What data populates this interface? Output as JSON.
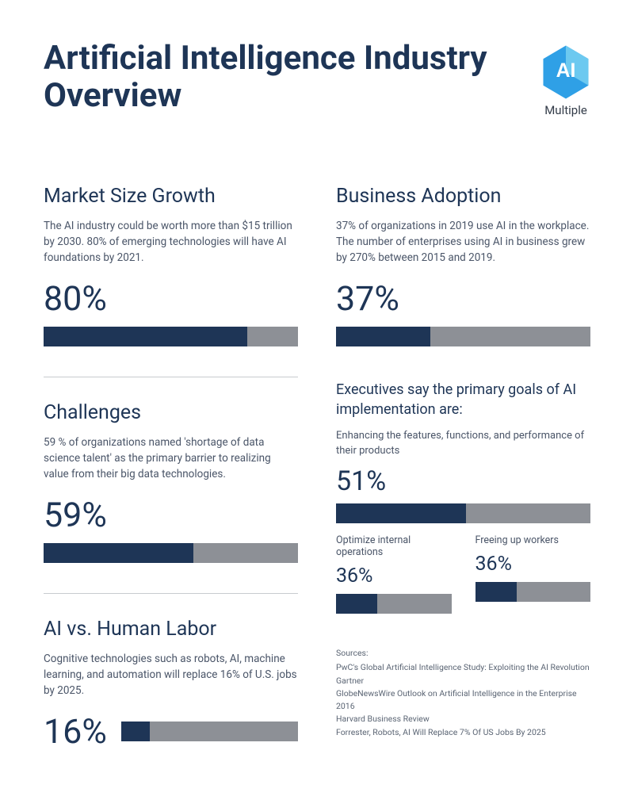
{
  "title": "Artificial Intelligence Industry Overview",
  "logo": {
    "label": "AI",
    "sublabel": "Multiple",
    "fill1": "#2fa0e6",
    "fill2": "#6cc9f0"
  },
  "colors": {
    "bar_fill": "#1e3556",
    "bar_bg": "#8d9096",
    "heading": "#1e3556",
    "body": "#4a5568"
  },
  "sections": {
    "market": {
      "title": "Market Size Growth",
      "desc": "The AI industry could be worth more than $15 trillion by 2030. 80% of emerging technologies will have AI foundations by 2021.",
      "pct_label": "80%",
      "pct": 80
    },
    "adoption": {
      "title": "Business Adoption",
      "desc": "37% of organizations in 2019 use AI in the workplace. The number of enterprises using AI in business grew by 270% between 2015 and 2019.",
      "pct_label": "37%",
      "pct": 37
    },
    "challenges": {
      "title": "Challenges",
      "desc": "59 % of organizations named 'shortage of data science talent' as the primary barrier to realizing value from their big data technologies.",
      "pct_label": "59%",
      "pct": 59
    },
    "labor": {
      "title": "AI vs. Human Labor",
      "desc": "Cognitive technologies such as robots, AI, machine learning, and automation will replace 16% of U.S. jobs by 2025.",
      "pct_label": "16%",
      "pct": 16
    },
    "goals": {
      "title": "Executives say the primary goals of AI implementation are:",
      "primary": {
        "desc": "Enhancing the features, functions, and performance of their products",
        "pct_label": "51%",
        "pct": 51
      },
      "sub": [
        {
          "label": "Optimize internal operations",
          "pct_label": "36%",
          "pct": 36
        },
        {
          "label": "Freeing up workers",
          "pct_label": "36%",
          "pct": 36
        }
      ]
    }
  },
  "sources": {
    "title": "Sources:",
    "lines": [
      "PwC's Global Artificial Intelligence Study: Exploiting the AI Revolution",
      "Gartner",
      "GlobeNewsWire Outlook on Artificial Intelligence in the Enterprise 2016",
      "Harvard Business Review",
      "Forrester, Robots, AI Will Replace 7% Of US Jobs By 2025"
    ]
  }
}
